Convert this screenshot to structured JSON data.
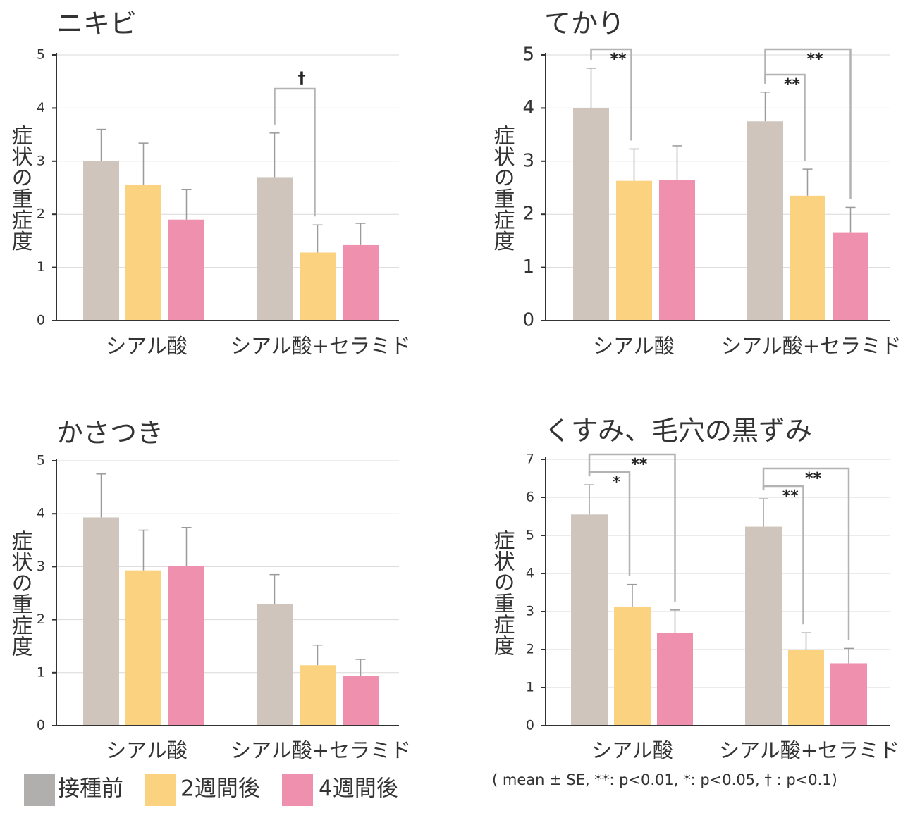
{
  "legend": {
    "items": [
      {
        "label": "接種前",
        "color": "#b0afad"
      },
      {
        "label": "2週間後",
        "color": "#fbd280"
      },
      {
        "label": "4週間後",
        "color": "#ef91ae"
      }
    ]
  },
  "note": "( mean ± SE, **: p<0.01, *: p<0.05, † : p<0.1)",
  "colors": {
    "baseline_bar": "#cfc5bc",
    "week2_bar": "#fbd280",
    "week4_bar": "#ef91ae",
    "axis": "#333333",
    "grid": "#d9d9d9",
    "errorbar": "#9a9a9a",
    "bracket": "#b3b3b3"
  },
  "chart_data": [
    {
      "type": "bar",
      "title": "ニキビ",
      "ylabel": "症状の重症度",
      "ylim": [
        0,
        5
      ],
      "yticks": [
        0,
        1,
        2,
        3,
        4,
        5
      ],
      "categories": [
        "シアル酸",
        "シアル酸+セラミド"
      ],
      "series": [
        {
          "name": "接種前",
          "values": [
            3.0,
            2.7
          ],
          "errors": [
            0.6,
            0.83
          ]
        },
        {
          "name": "2週間後",
          "values": [
            2.56,
            1.28
          ],
          "errors": [
            0.78,
            0.52
          ]
        },
        {
          "name": "4週間後",
          "values": [
            1.9,
            1.42
          ],
          "errors": [
            0.57,
            0.41
          ]
        }
      ],
      "significance": [
        {
          "category": 1,
          "from": 0,
          "to": 1,
          "label": "†"
        }
      ]
    },
    {
      "type": "bar",
      "title": "てかり",
      "ylabel": "症状の重症度",
      "ylim": [
        0,
        5
      ],
      "yticks": [
        0,
        1,
        2,
        3,
        4,
        5
      ],
      "categories": [
        "シアル酸",
        "シアル酸+セラミド"
      ],
      "series": [
        {
          "name": "接種前",
          "values": [
            4.0,
            3.75
          ],
          "errors": [
            0.75,
            0.55
          ]
        },
        {
          "name": "2週間後",
          "values": [
            2.63,
            2.35
          ],
          "errors": [
            0.6,
            0.5
          ]
        },
        {
          "name": "4週間後",
          "values": [
            2.64,
            1.65
          ],
          "errors": [
            0.65,
            0.48
          ]
        }
      ],
      "significance": [
        {
          "category": 0,
          "from": 0,
          "to": 1,
          "label": "**"
        },
        {
          "category": 1,
          "from": 0,
          "to": 1,
          "label": "**"
        },
        {
          "category": 1,
          "from": 0,
          "to": 2,
          "label": "**"
        }
      ]
    },
    {
      "type": "bar",
      "title": "かさつき",
      "ylabel": "症状の重症度",
      "ylim": [
        0,
        5
      ],
      "yticks": [
        0,
        1,
        2,
        3,
        4,
        5
      ],
      "categories": [
        "シアル酸",
        "シアル酸+セラミド"
      ],
      "series": [
        {
          "name": "接種前",
          "values": [
            3.93,
            2.3
          ],
          "errors": [
            0.82,
            0.55
          ]
        },
        {
          "name": "2週間後",
          "values": [
            2.93,
            1.14
          ],
          "errors": [
            0.76,
            0.38
          ]
        },
        {
          "name": "4週間後",
          "values": [
            3.01,
            0.94
          ],
          "errors": [
            0.73,
            0.31
          ]
        }
      ],
      "significance": []
    },
    {
      "type": "bar",
      "title": "くすみ、毛穴の黒ずみ",
      "ylabel": "症状の重症度",
      "ylim": [
        0,
        7
      ],
      "yticks": [
        0,
        1,
        2,
        3,
        4,
        5,
        6,
        7
      ],
      "categories": [
        "シアル酸",
        "シアル酸+セラミド"
      ],
      "series": [
        {
          "name": "接種前",
          "values": [
            5.55,
            5.23
          ],
          "errors": [
            0.78,
            0.73
          ]
        },
        {
          "name": "2週間後",
          "values": [
            3.13,
            1.99
          ],
          "errors": [
            0.58,
            0.45
          ]
        },
        {
          "name": "4週間後",
          "values": [
            2.44,
            1.64
          ],
          "errors": [
            0.6,
            0.39
          ]
        }
      ],
      "significance": [
        {
          "category": 0,
          "from": 0,
          "to": 1,
          "label": "*"
        },
        {
          "category": 0,
          "from": 0,
          "to": 2,
          "label": "**"
        },
        {
          "category": 1,
          "from": 0,
          "to": 1,
          "label": "**"
        },
        {
          "category": 1,
          "from": 0,
          "to": 2,
          "label": "**"
        }
      ]
    }
  ]
}
